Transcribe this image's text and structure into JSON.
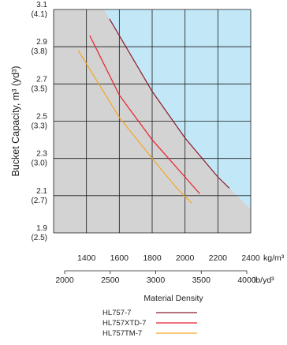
{
  "chart_data": {
    "type": "line",
    "title": "",
    "ylabel": "Bucket Capacity, m³ (yd³)",
    "xlabel": "Material Density",
    "x_unit_metric": "kg/m³",
    "x_unit_imperial": "lb/yd³",
    "xlim": [
      1200,
      2400
    ],
    "ylim": [
      1.9,
      3.1
    ],
    "grid": true,
    "y_ticks": [
      {
        "value": 1.9,
        "label": "1.9",
        "sublabel": "(2.5)"
      },
      {
        "value": 2.1,
        "label": "2.1",
        "sublabel": "(2.7)"
      },
      {
        "value": 2.3,
        "label": "2.3",
        "sublabel": "(3.0)"
      },
      {
        "value": 2.5,
        "label": "2.5",
        "sublabel": "(3.3)"
      },
      {
        "value": 2.7,
        "label": "2.7",
        "sublabel": "(3.5)"
      },
      {
        "value": 2.9,
        "label": "2.9",
        "sublabel": "(3.8)"
      },
      {
        "value": 3.1,
        "label": "3.1",
        "sublabel": "(4.1)"
      }
    ],
    "x_ticks_metric": [
      {
        "value": 1400,
        "label": "1400"
      },
      {
        "value": 1600,
        "label": "1600"
      },
      {
        "value": 1800,
        "label": "1800"
      },
      {
        "value": 2000,
        "label": "2000"
      },
      {
        "value": 2200,
        "label": "2200"
      },
      {
        "value": 2400,
        "label": "2400"
      }
    ],
    "x_ticks_imperial": [
      {
        "value": 2000,
        "label": "2000"
      },
      {
        "value": 2500,
        "label": "2500"
      },
      {
        "value": 3000,
        "label": "3000"
      },
      {
        "value": 3500,
        "label": "3500"
      },
      {
        "value": 4000,
        "label": "4000"
      }
    ],
    "series": [
      {
        "name": "HL757-7",
        "color": "#8b1a2b",
        "points": [
          [
            1540,
            3.05
          ],
          [
            1800,
            2.66
          ],
          [
            2000,
            2.41
          ],
          [
            2200,
            2.2
          ],
          [
            2270,
            2.14
          ]
        ]
      },
      {
        "name": "HL757XTD-7",
        "color": "#e8202a",
        "points": [
          [
            1420,
            2.96
          ],
          [
            1600,
            2.64
          ],
          [
            1800,
            2.4
          ],
          [
            2000,
            2.2
          ],
          [
            2090,
            2.11
          ]
        ]
      },
      {
        "name": "HL757TM-7",
        "color": "#f5a623",
        "points": [
          [
            1350,
            2.88
          ],
          [
            1600,
            2.52
          ],
          [
            1800,
            2.3
          ],
          [
            1950,
            2.14
          ],
          [
            2040,
            2.06
          ]
        ]
      }
    ],
    "shading": {
      "feasible_color": "#d3d3d3",
      "outside_color": "#c2e8f8"
    }
  }
}
